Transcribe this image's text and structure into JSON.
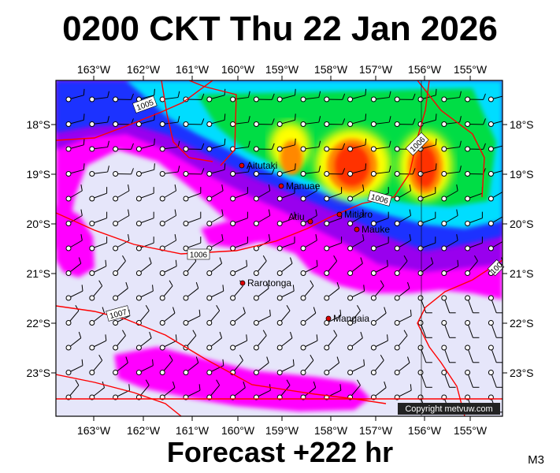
{
  "title": "0200 CKT Thu 22 Jan 2026",
  "footer": "Forecast +222 hr",
  "corner_label": "M3",
  "copyright": "Copyright metvuw.com",
  "map": {
    "lon_labels": [
      "163°W",
      "162°W",
      "161°W",
      "160°W",
      "159°W",
      "158°W",
      "157°W",
      "156°W",
      "155°W"
    ],
    "lat_labels": [
      "18°S",
      "19°S",
      "20°S",
      "21°S",
      "22°S",
      "23°S"
    ],
    "places": [
      {
        "name": "Aitutaki",
        "lon": -159.8,
        "lat": -18.85
      },
      {
        "name": "Manuae",
        "lon": -158.95,
        "lat": -19.25
      },
      {
        "name": "Atiu",
        "lon": -158.1,
        "lat": -20.0
      },
      {
        "name": "Mitiaro",
        "lon": -157.7,
        "lat": -19.85
      },
      {
        "name": "Mauke",
        "lon": -157.35,
        "lat": -20.15
      },
      {
        "name": "Rarotonga",
        "lon": -159.8,
        "lat": -21.2
      },
      {
        "name": "Mangaia",
        "lon": -157.9,
        "lat": -21.9
      }
    ],
    "isobars": [
      "1005",
      "1006",
      "1006",
      "1006",
      "1007",
      "100"
    ],
    "colors": {
      "calm": "#e6e6fa",
      "magenta": "#ff00ff",
      "purple": "#9900ee",
      "blue": "#1e30ff",
      "cyan": "#00ddff",
      "green": "#00dd44",
      "yellow": "#ffff00",
      "orange": "#ff8800",
      "red": "#ff3300",
      "isobar": "#ff0000"
    }
  }
}
